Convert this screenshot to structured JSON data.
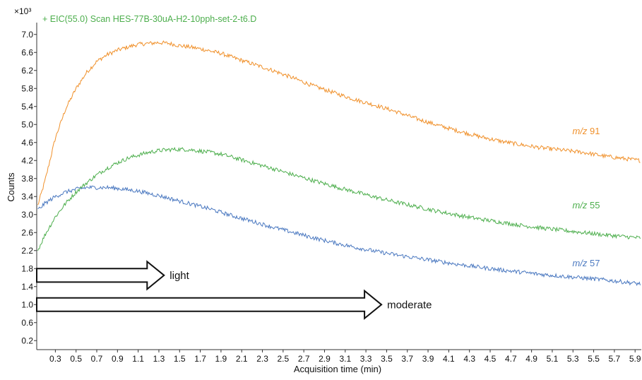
{
  "chart_data": {
    "type": "line",
    "title": "+ EIC(55.0) Scan HES-77B-30uA-H2-10pph-set-2-t6.D",
    "title_color": "#4cae4c",
    "xlabel": "Acquisition time (min)",
    "ylabel": "Counts",
    "y_multiplier": "×10³",
    "xlim": [
      0.12,
      5.96
    ],
    "ylim": [
      0.0,
      7.2
    ],
    "x_ticks": [
      "0.3",
      "0.5",
      "0.7",
      "0.9",
      "1.1",
      "1.3",
      "1.5",
      "1.7",
      "1.9",
      "2.1",
      "2.3",
      "2.5",
      "2.7",
      "2.9",
      "3.1",
      "3.3",
      "3.5",
      "3.7",
      "3.9",
      "4.1",
      "4.3",
      "4.5",
      "4.7",
      "4.9",
      "5.1",
      "5.3",
      "5.5",
      "5.7",
      "5.9"
    ],
    "y_ticks": [
      "0.2",
      "0.6",
      "1.0",
      "1.4",
      "1.8",
      "2.2",
      "2.6",
      "3.0",
      "3.4",
      "3.8",
      "4.2",
      "4.6",
      "5.0",
      "5.4",
      "5.8",
      "6.2",
      "6.6",
      "7.0"
    ],
    "grid": false,
    "series": [
      {
        "name": "m/z 91",
        "label_italic": "m/z",
        "label_number": "91",
        "color": "#f0902a",
        "x": [
          0.13,
          0.2,
          0.3,
          0.4,
          0.5,
          0.6,
          0.7,
          0.8,
          0.9,
          1.0,
          1.1,
          1.2,
          1.3,
          1.4,
          1.5,
          1.6,
          1.7,
          1.8,
          1.9,
          2.0,
          2.2,
          2.4,
          2.6,
          2.8,
          3.0,
          3.2,
          3.4,
          3.6,
          3.8,
          4.0,
          4.2,
          4.4,
          4.6,
          4.8,
          5.0,
          5.2,
          5.4,
          5.6,
          5.8,
          5.95
        ],
        "y": [
          3.2,
          3.75,
          4.7,
          5.35,
          5.8,
          6.15,
          6.4,
          6.55,
          6.65,
          6.72,
          6.78,
          6.8,
          6.82,
          6.8,
          6.75,
          6.72,
          6.68,
          6.63,
          6.58,
          6.5,
          6.35,
          6.2,
          6.03,
          5.85,
          5.7,
          5.55,
          5.42,
          5.28,
          5.12,
          4.98,
          4.85,
          4.73,
          4.63,
          4.55,
          4.48,
          4.43,
          4.38,
          4.3,
          4.24,
          4.2
        ]
      },
      {
        "name": "m/z 55",
        "label_italic": "m/z",
        "label_number": "55",
        "color": "#4cae4c",
        "x": [
          0.13,
          0.2,
          0.3,
          0.4,
          0.5,
          0.6,
          0.7,
          0.8,
          0.9,
          1.0,
          1.1,
          1.2,
          1.3,
          1.4,
          1.5,
          1.6,
          1.7,
          1.8,
          1.9,
          2.0,
          2.2,
          2.4,
          2.6,
          2.8,
          3.0,
          3.2,
          3.4,
          3.6,
          3.8,
          4.0,
          4.2,
          4.4,
          4.6,
          4.8,
          5.0,
          5.2,
          5.4,
          5.6,
          5.8,
          5.95
        ],
        "y": [
          2.2,
          2.55,
          2.95,
          3.25,
          3.5,
          3.7,
          3.88,
          4.03,
          4.15,
          4.25,
          4.32,
          4.38,
          4.42,
          4.44,
          4.45,
          4.44,
          4.41,
          4.38,
          4.34,
          4.28,
          4.15,
          4.02,
          3.88,
          3.75,
          3.62,
          3.5,
          3.38,
          3.27,
          3.17,
          3.07,
          2.98,
          2.9,
          2.83,
          2.76,
          2.7,
          2.65,
          2.6,
          2.55,
          2.51,
          2.48
        ]
      },
      {
        "name": "m/z 57",
        "label_italic": "m/z",
        "label_number": "57",
        "color": "#4a78c0",
        "x": [
          0.13,
          0.2,
          0.3,
          0.4,
          0.5,
          0.6,
          0.7,
          0.8,
          0.9,
          1.0,
          1.1,
          1.2,
          1.3,
          1.4,
          1.5,
          1.6,
          1.7,
          1.8,
          1.9,
          2.0,
          2.2,
          2.4,
          2.6,
          2.8,
          3.0,
          3.2,
          3.4,
          3.6,
          3.8,
          4.0,
          4.2,
          4.4,
          4.6,
          4.8,
          5.0,
          5.2,
          5.4,
          5.6,
          5.8,
          5.95
        ],
        "y": [
          3.1,
          3.25,
          3.4,
          3.5,
          3.56,
          3.6,
          3.6,
          3.6,
          3.58,
          3.55,
          3.52,
          3.47,
          3.42,
          3.36,
          3.3,
          3.24,
          3.18,
          3.12,
          3.05,
          2.98,
          2.85,
          2.72,
          2.6,
          2.48,
          2.37,
          2.27,
          2.18,
          2.1,
          2.03,
          1.96,
          1.89,
          1.83,
          1.77,
          1.72,
          1.67,
          1.63,
          1.59,
          1.55,
          1.5,
          1.46
        ]
      }
    ],
    "annotations": [
      {
        "type": "arrow",
        "text": "light",
        "x_start": 0.12,
        "x_end": 1.35,
        "y_top": 1.8,
        "y_bottom": 1.5
      },
      {
        "type": "arrow",
        "text": "moderate",
        "x_start": 0.12,
        "x_end": 3.45,
        "y_top": 1.15,
        "y_bottom": 0.85
      }
    ]
  }
}
